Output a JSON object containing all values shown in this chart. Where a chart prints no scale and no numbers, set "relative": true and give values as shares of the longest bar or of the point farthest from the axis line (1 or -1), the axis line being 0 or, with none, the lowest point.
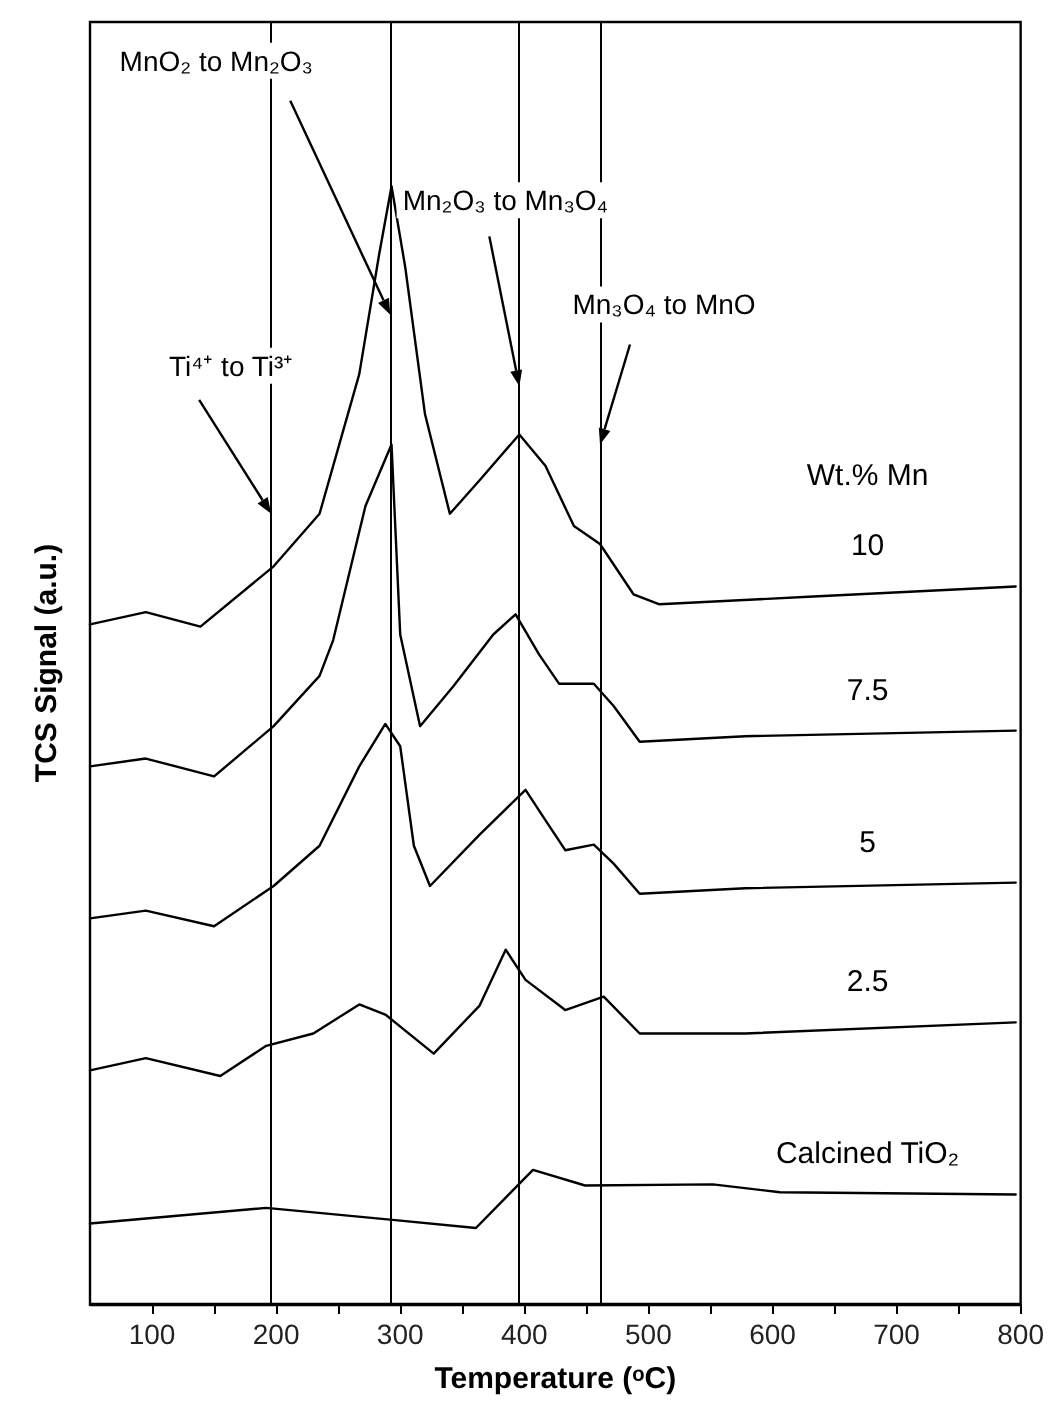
{
  "chart_data": {
    "type": "line",
    "relative": true,
    "xlabel": "Temperature (ᵒC)",
    "ylabel": "TCS Signal (a.u.)",
    "legend_title": "Wt.% Mn",
    "xlim": [
      50,
      800
    ],
    "xticks": [
      100,
      {
        "value": 150,
        "label": null
      },
      200,
      {
        "value": 250,
        "label": null
      },
      300,
      {
        "value": 350,
        "label": null
      },
      400,
      {
        "value": 450,
        "label": null
      },
      500,
      {
        "value": 550,
        "label": null
      },
      600,
      {
        "value": 650,
        "label": null
      },
      700,
      {
        "value": 750,
        "label": null
      },
      800
    ],
    "series": [
      {
        "name": "10",
        "color": "#000000",
        "x": [
          50,
          95,
          139,
          198,
          235,
          267,
          283,
          293,
          304,
          320,
          340,
          364,
          396,
          417,
          440,
          461,
          488,
          509,
          633,
          796
        ],
        "values": [
          0.608,
          0.619,
          0.606,
          0.66,
          0.707,
          0.832,
          0.939,
          1,
          0.928,
          0.796,
          0.707,
          0.737,
          0.778,
          0.75,
          0.696,
          0.68,
          0.635,
          0.626,
          0.633,
          0.642
        ]
      },
      {
        "name": "7.5",
        "color": "#000000",
        "x": [
          50,
          95,
          150,
          198,
          235,
          246,
          272,
          293,
          300,
          316,
          343,
          375,
          393,
          412,
          428,
          456,
          472,
          493,
          578,
          796
        ],
        "values": [
          0.481,
          0.488,
          0.472,
          0.517,
          0.562,
          0.594,
          0.714,
          0.769,
          0.599,
          0.517,
          0.553,
          0.599,
          0.617,
          0.581,
          0.555,
          0.555,
          0.535,
          0.503,
          0.508,
          0.513
        ]
      },
      {
        "name": "5",
        "color": "#000000",
        "x": [
          50,
          95,
          150,
          198,
          235,
          267,
          288,
          300,
          311,
          324,
          364,
          401,
          417,
          433,
          456,
          472,
          493,
          578,
          796
        ],
        "values": [
          0.345,
          0.352,
          0.338,
          0.374,
          0.41,
          0.481,
          0.519,
          0.499,
          0.41,
          0.374,
          0.42,
          0.46,
          0.433,
          0.406,
          0.411,
          0.394,
          0.367,
          0.372,
          0.377
        ]
      },
      {
        "name": "2.5",
        "color": "#000000",
        "x": [
          50,
          95,
          155,
          192,
          230,
          267,
          288,
          327,
          364,
          385,
          401,
          433,
          464,
          493,
          578,
          796
        ],
        "values": [
          0.209,
          0.22,
          0.204,
          0.231,
          0.242,
          0.268,
          0.259,
          0.224,
          0.267,
          0.317,
          0.29,
          0.263,
          0.275,
          0.242,
          0.242,
          0.252
        ]
      },
      {
        "name": "Calcined TiO₂",
        "color": "#000000",
        "x": [
          50,
          192,
          296,
          361,
          407,
          449,
          552,
          606,
          796
        ],
        "values": [
          0.072,
          0.086,
          0.075,
          0.068,
          0.12,
          0.106,
          0.107,
          0.1,
          0.098
        ]
      }
    ],
    "ref_lines": [
      {
        "axis": "x",
        "value": 196,
        "color": "#000000"
      },
      {
        "axis": "x",
        "value": 292,
        "color": "#000000"
      },
      {
        "axis": "x",
        "value": 396,
        "color": "#000000"
      },
      {
        "axis": "x",
        "value": 461,
        "color": "#000000"
      }
    ],
    "annotations": [
      {
        "text": "MnO₂ to Mn₂O₃",
        "x": 292,
        "y": 0.885
      },
      {
        "text": "Mn₂O₃ to Mn₃O₄",
        "x": 396,
        "y": 0.821
      },
      {
        "text": "Mn₃O₄ to MnO",
        "x": 461,
        "y": 0.769
      },
      {
        "text": "Ti⁴⁺ to Ti³⁺",
        "x": 196,
        "y": 0.707
      }
    ],
    "grid": false,
    "legend": false,
    "marker": "none",
    "line_style": "solid"
  }
}
